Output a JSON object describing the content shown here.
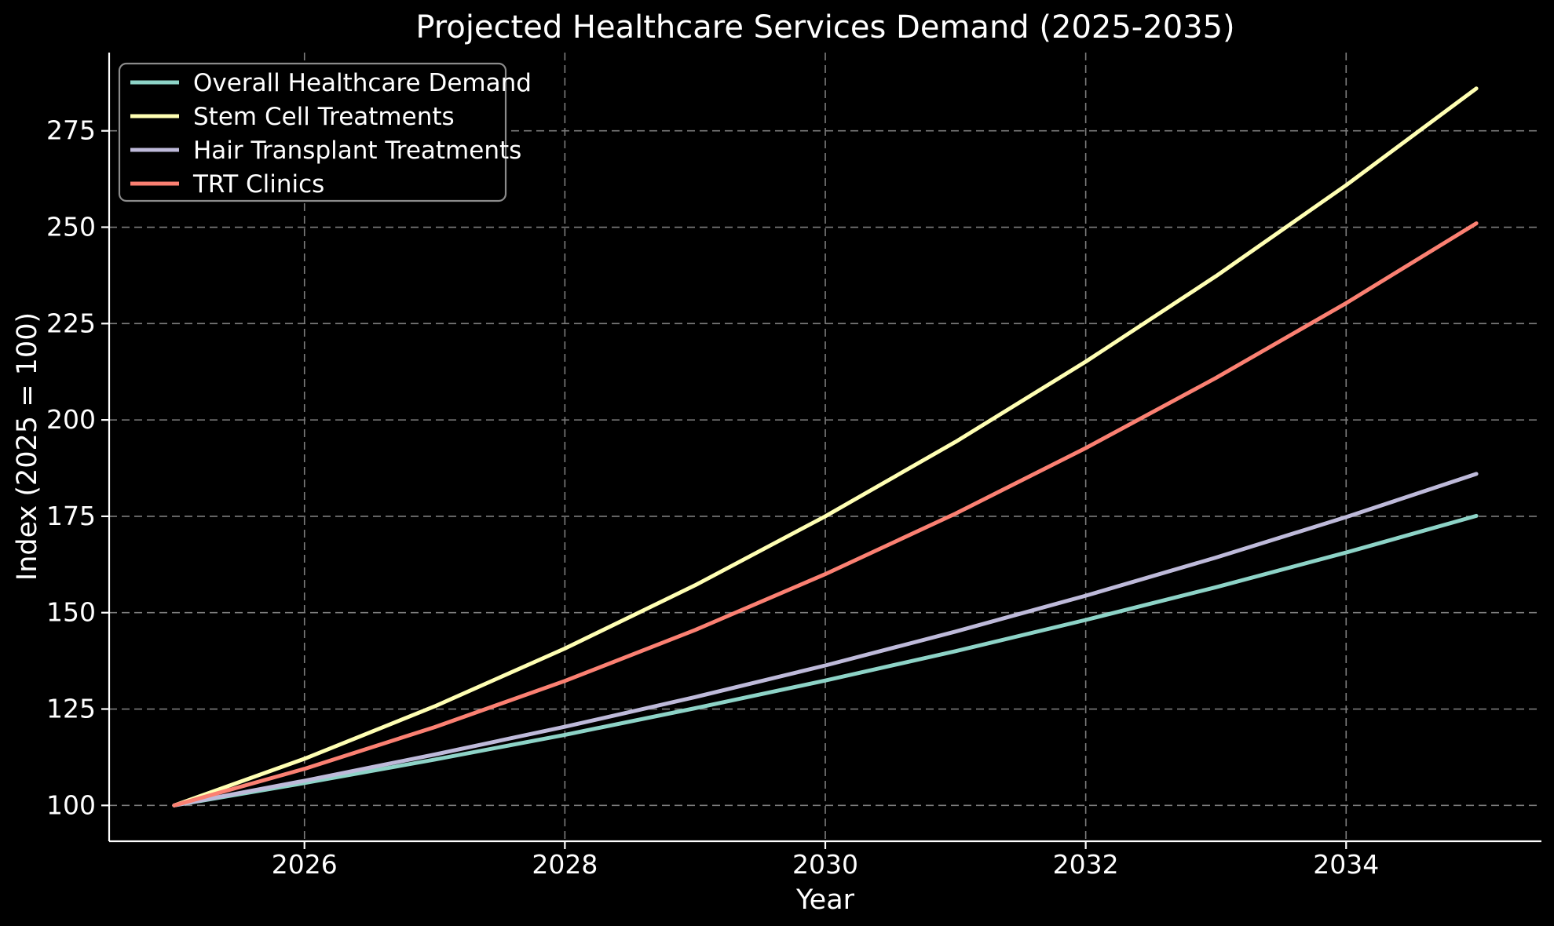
{
  "chart_data": {
    "type": "line",
    "title": "Projected Healthcare Services Demand (2025-2035)",
    "xlabel": "Year",
    "ylabel": "Index (2025 = 100)",
    "x": [
      2025,
      2026,
      2027,
      2028,
      2029,
      2030,
      2031,
      2032,
      2033,
      2034,
      2035
    ],
    "series": [
      {
        "name": "Overall Healthcare Demand",
        "color": "#8dd3c7",
        "values": [
          100,
          105.8,
          111.9,
          118.3,
          125.2,
          132.4,
          140.0,
          148.1,
          156.6,
          165.6,
          175.1
        ]
      },
      {
        "name": "Stem Cell Treatments",
        "color": "#ffffb3",
        "values": [
          100,
          112.1,
          125.7,
          140.7,
          157.1,
          175.0,
          194.3,
          215.1,
          237.3,
          260.9,
          286.0
        ]
      },
      {
        "name": "Hair Transplant Treatments",
        "color": "#bebada",
        "values": [
          100,
          106.4,
          113.2,
          120.4,
          128.1,
          136.3,
          145.1,
          154.4,
          164.3,
          174.8,
          186.0
        ]
      },
      {
        "name": "TRT Clinics",
        "color": "#fb8072",
        "values": [
          100,
          109.5,
          120.3,
          132.3,
          145.5,
          160.0,
          175.7,
          192.7,
          210.9,
          230.3,
          251.0
        ]
      }
    ],
    "xticks": [
      2026,
      2028,
      2030,
      2032,
      2034
    ],
    "yticks": [
      100,
      125,
      150,
      175,
      200,
      225,
      250,
      275
    ],
    "xlim": [
      2024.5,
      2035.5
    ],
    "ylim": [
      90.7,
      295.3
    ],
    "grid": true,
    "legend_position": "upper left",
    "colors": {
      "background": "#000000",
      "text": "#ffffff",
      "grid": "#7d7d7d",
      "spine": "#ffffff",
      "legend_border": "#8b8b8b",
      "legend_background": "#000000"
    }
  }
}
